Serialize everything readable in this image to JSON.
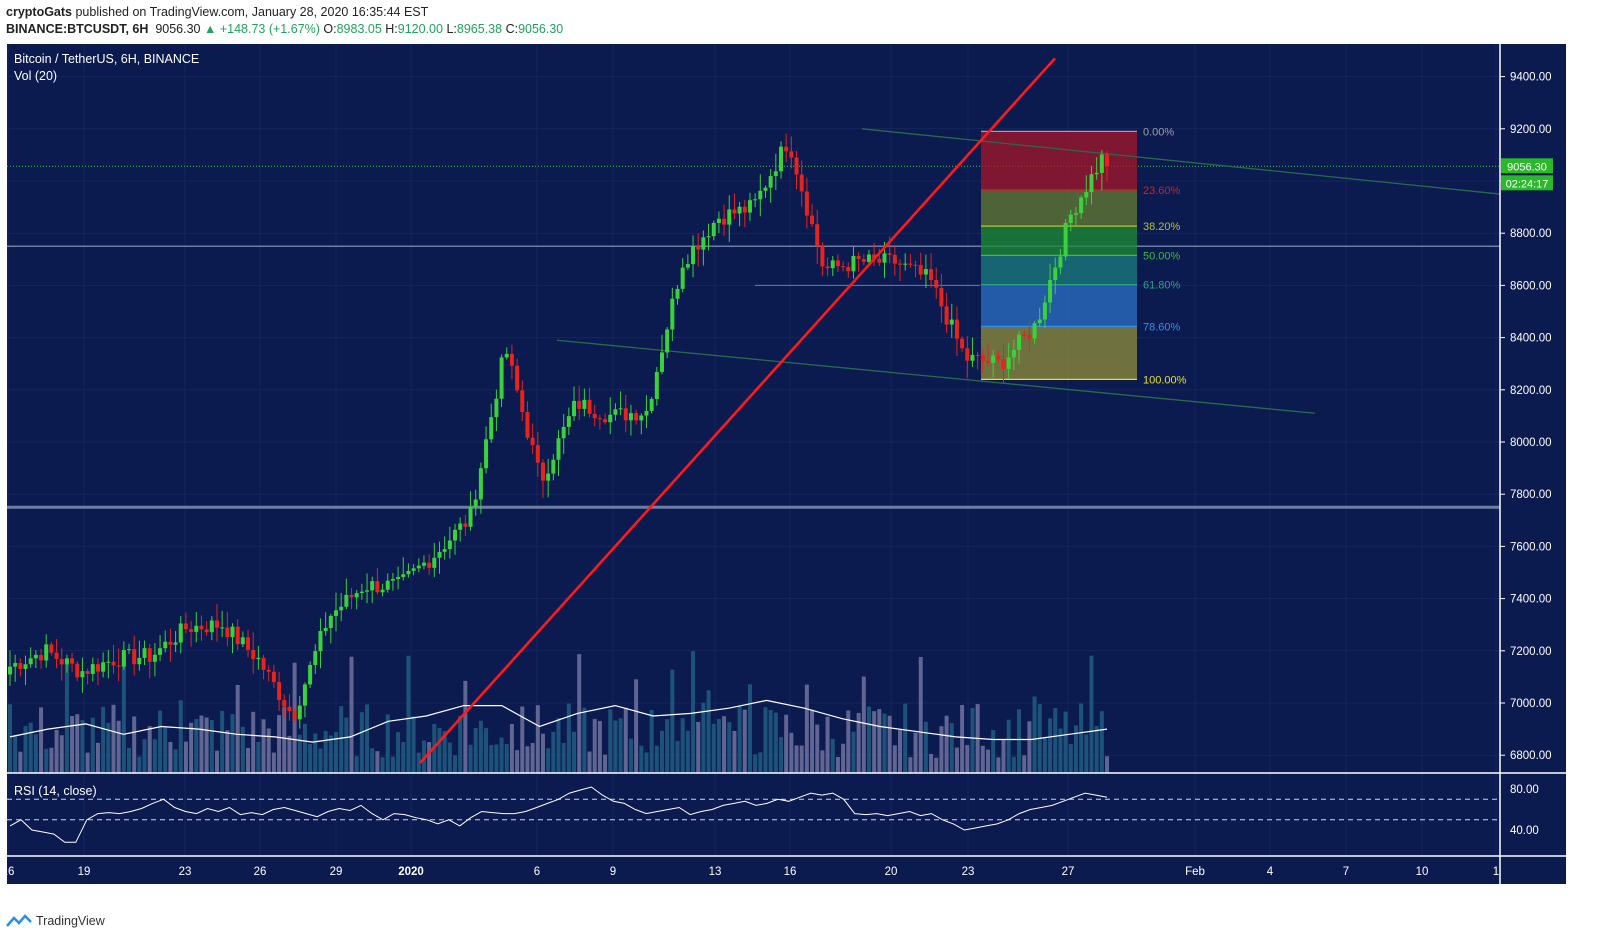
{
  "header": {
    "line1_user": "cryptoGats",
    "line1_rest": " published on TradingView.com, January 28, 2020 16:35:44 EST",
    "line2_symbol": "BINANCE:BTCUSDT, 6H",
    "line2_price": "9056.30",
    "line2_change": "▲ +148.73 (+1.67%)",
    "o_label": "O:",
    "o_value": "8983.05",
    "h_label": "H:",
    "h_value": "9120.00",
    "l_label": "L:",
    "l_value": "8965.38",
    "c_label": "C:",
    "c_value": "9056.30"
  },
  "chart_title": "Bitcoin / TetherUS, 6H, BINANCE",
  "volume_label": "Vol (20)",
  "rsi_label": "RSI (14, close)",
  "price_tag": "9056.30",
  "countdown_tag": "02:24:17",
  "footer": {
    "brand": "TradingView"
  },
  "colors": {
    "background": "#0b1a4f",
    "up": "#3ad23a",
    "down": "#e8221c",
    "trendline": "#ff1a1a",
    "volume_up": "#1f5a7e",
    "volume_down": "#6a6e9a"
  },
  "chart_data": {
    "type": "candlestick",
    "title": "Bitcoin / TetherUS, 6H, BINANCE",
    "y_axis": {
      "min": 6700,
      "max": 9500,
      "ticks": [
        6800,
        7000,
        7200,
        7400,
        7600,
        7800,
        8000,
        8200,
        8400,
        8600,
        8800,
        9000,
        9200,
        9400
      ]
    },
    "x_axis_labels": [
      "16",
      "19",
      "23",
      "26",
      "29",
      "2020",
      "6",
      "9",
      "13",
      "16",
      "20",
      "23",
      "27",
      "Feb",
      "4",
      "7",
      "10",
      "1"
    ],
    "last_price": 9056.3,
    "ohlc_anchor_path": [
      [
        7140,
        6850
      ],
      [
        7200,
        7320
      ],
      [
        7120,
        7130
      ],
      [
        7170,
        7580
      ],
      [
        7180,
        7160
      ],
      [
        7290,
        7380
      ],
      [
        7300,
        7330
      ],
      [
        7170,
        7240
      ],
      [
        6950,
        6880
      ],
      [
        7330,
        7300
      ],
      [
        7450,
        7400
      ],
      [
        7450,
        7320
      ],
      [
        7570,
        7560
      ],
      [
        7710,
        8050
      ],
      [
        8360,
        8360
      ],
      [
        7850,
        8110
      ],
      [
        8150,
        8090
      ],
      [
        8100,
        8080
      ],
      [
        8120,
        8150
      ],
      [
        8690,
        8680
      ],
      [
        8860,
        8720
      ],
      [
        8900,
        8930
      ],
      [
        9160,
        9200
      ],
      [
        8660,
        8670
      ],
      [
        8690,
        8650
      ],
      [
        8690,
        8700
      ],
      [
        8620,
        8650
      ],
      [
        8320,
        8360
      ],
      [
        8300,
        8390
      ],
      [
        8450,
        8440
      ],
      [
        8880,
        8950
      ],
      [
        9120,
        9056
      ]
    ],
    "volume_ma": [
      6870,
      6900,
      6920,
      6880,
      6910,
      6900,
      6880,
      6870,
      6850,
      6870,
      6930,
      6950,
      6990,
      6990,
      6910,
      6960,
      6990,
      6950,
      6960,
      6980,
      7010,
      6980,
      6940,
      6910,
      6890,
      6870,
      6860,
      6860,
      6880,
      6900
    ],
    "fibonacci": {
      "high": 9190,
      "low": 8240,
      "levels": [
        {
          "label": "0.00%",
          "value": 9190,
          "color": "#a0a0a0"
        },
        {
          "label": "23.60%",
          "value": 8966,
          "color": "#d62020"
        },
        {
          "label": "38.20%",
          "value": 8827,
          "color": "#b8c030"
        },
        {
          "label": "50.00%",
          "value": 8715,
          "color": "#3dbd3d"
        },
        {
          "label": "61.80%",
          "value": 8603,
          "color": "#2aa38a"
        },
        {
          "label": "78.60%",
          "value": 8443,
          "color": "#3a8fe6"
        },
        {
          "label": "100.00%",
          "value": 8240,
          "color": "#e8e020"
        }
      ]
    },
    "horizontal_levels": [
      8750,
      8600,
      7750
    ],
    "trendline": {
      "from": {
        "price": 6770
      },
      "to": {
        "price": 9470
      }
    },
    "channel_lines": [
      {
        "from": 9200,
        "to": 8950
      },
      {
        "from": 8390,
        "to": 8110
      }
    ],
    "rsi": {
      "y_axis": {
        "min": 20,
        "max": 90,
        "ticks": [
          40.0,
          80.0
        ]
      },
      "bands": [
        70,
        50
      ],
      "values": [
        44,
        50,
        40,
        38,
        36,
        28,
        28,
        50,
        56,
        57,
        56,
        58,
        61,
        66,
        70,
        62,
        58,
        56,
        61,
        58,
        62,
        55,
        57,
        55,
        60,
        62,
        59,
        56,
        53,
        58,
        61,
        59,
        64,
        56,
        50,
        56,
        55,
        52,
        50,
        46,
        50,
        44,
        52,
        58,
        57,
        56,
        56,
        58,
        62,
        66,
        70,
        76,
        79,
        82,
        74,
        68,
        66,
        60,
        56,
        58,
        60,
        62,
        55,
        58,
        60,
        64,
        66,
        68,
        64,
        66,
        70,
        68,
        72,
        76,
        74,
        76,
        70,
        56,
        55,
        56,
        54,
        56,
        58,
        54,
        56,
        50,
        46,
        40,
        42,
        44,
        46,
        50,
        56,
        60,
        62,
        64,
        68,
        72,
        76,
        74,
        72
      ]
    }
  }
}
